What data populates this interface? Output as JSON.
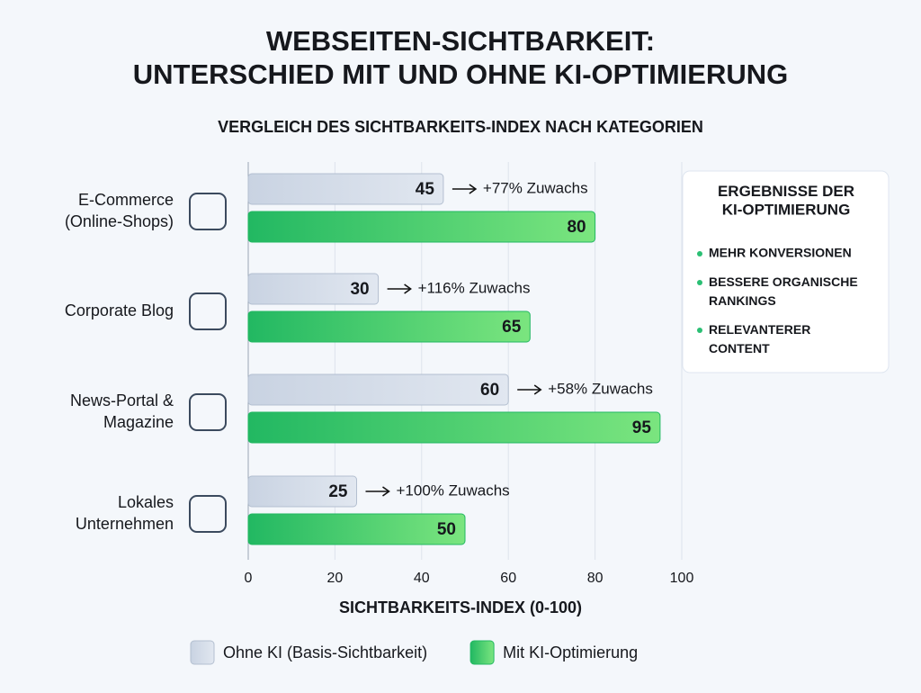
{
  "chart_data": {
    "type": "bar",
    "orientation": "horizontal",
    "title": "WEBSEITEN-SICHTBARKEIT:\nUNTERSCHIED MIT UND OHNE KI-OPTIMIERUNG",
    "subtitle": "VERGLEICH DES SICHTBARKEITS-INDEX NACH KATEGORIEN",
    "x_label": "SICHTBARKEITS-INDEX (0-100)",
    "categories": [
      "E-Commerce\n(Online-Shops)",
      "Corporate Blog",
      "News-Portal &\nMagazine",
      "Lokales\nUnternehmen"
    ],
    "series": [
      {
        "name": "Ohne KI (Basis-Sichtbarkeit)",
        "color": "#d4dce8",
        "values": [
          45,
          30,
          60,
          25
        ]
      },
      {
        "name": "Mit KI-Optimierung",
        "color": "#3fd06f",
        "values": [
          80,
          65,
          95,
          50
        ]
      }
    ],
    "annotations": [
      "+77% Zuwachs",
      "+116% Zuwachs",
      "+58% Zuwachs",
      "+100% Zuwachs"
    ],
    "xlim": [
      0,
      100
    ],
    "xticks": [
      0,
      20,
      40,
      60,
      80,
      100
    ],
    "grid": true,
    "legend": "bottom",
    "side_box": {
      "title": "ERGEBNISSE DER\nKI-OPTIMIERUNG",
      "items": [
        "MEHR KONVERSIONEN",
        "BESSERE ORGANISCHE\nRANKINGS",
        "RELEVANTERER\nCONTENT"
      ]
    }
  }
}
